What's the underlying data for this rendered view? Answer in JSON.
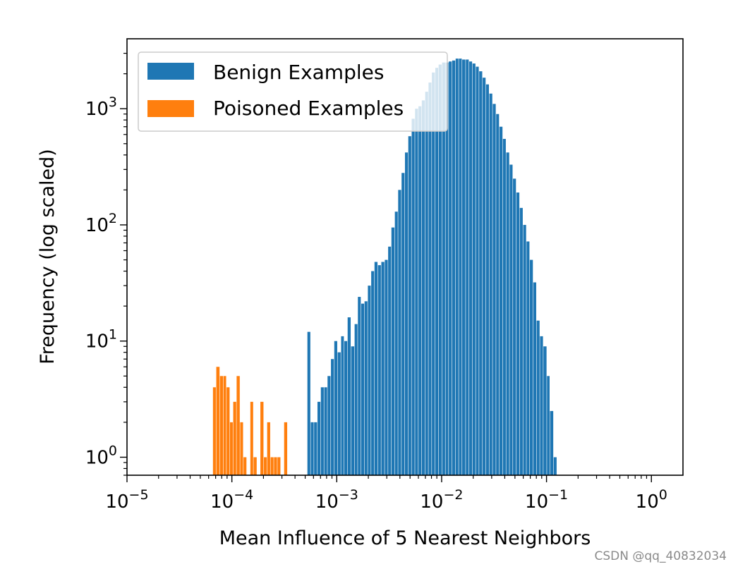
{
  "chart_data": {
    "type": "bar",
    "xscale": "log",
    "yscale": "log",
    "xlim": [
      1e-05,
      2.0
    ],
    "ylim": [
      0.7,
      4000
    ],
    "xlabel": "Mean Influence of 5 Nearest Neighbors",
    "ylabel": "Frequency (log scaled)",
    "legend_placement": "upper-left",
    "grid": false,
    "x_ticks": [
      {
        "value": 1e-05,
        "base": "10",
        "exp": "−5"
      },
      {
        "value": 0.0001,
        "base": "10",
        "exp": "−4"
      },
      {
        "value": 0.001,
        "base": "10",
        "exp": "−3"
      },
      {
        "value": 0.01,
        "base": "10",
        "exp": "−2"
      },
      {
        "value": 0.1,
        "base": "10",
        "exp": "−1"
      },
      {
        "value": 1,
        "base": "10",
        "exp": "0"
      }
    ],
    "y_ticks": [
      {
        "value": 1,
        "base": "10",
        "exp": "0"
      },
      {
        "value": 10,
        "base": "10",
        "exp": "1"
      },
      {
        "value": 100,
        "base": "10",
        "exp": "2"
      },
      {
        "value": 1000,
        "base": "10",
        "exp": "3"
      }
    ],
    "series": [
      {
        "name": "Benign Examples",
        "color": "#1f77b4",
        "bins": [
          [
            0.000525,
            0.000565,
            12
          ],
          [
            0.000565,
            0.000608,
            2
          ],
          [
            0.000608,
            0.000655,
            2
          ],
          [
            0.000655,
            0.000705,
            3
          ],
          [
            0.000705,
            0.000759,
            4
          ],
          [
            0.000759,
            0.000817,
            4
          ],
          [
            0.000817,
            0.00088,
            5
          ],
          [
            0.00088,
            0.000947,
            7
          ],
          [
            0.000947,
            0.00102,
            10
          ],
          [
            0.00102,
            0.0011,
            8
          ],
          [
            0.0011,
            0.00118,
            11
          ],
          [
            0.00118,
            0.00127,
            10
          ],
          [
            0.00127,
            0.00137,
            16
          ],
          [
            0.00137,
            0.00148,
            9
          ],
          [
            0.00148,
            0.00159,
            14
          ],
          [
            0.00159,
            0.00171,
            24
          ],
          [
            0.00171,
            0.00184,
            21
          ],
          [
            0.00184,
            0.00198,
            22
          ],
          [
            0.00198,
            0.00213,
            30
          ],
          [
            0.00213,
            0.00229,
            40
          ],
          [
            0.00229,
            0.00247,
            48
          ],
          [
            0.00247,
            0.00266,
            45
          ],
          [
            0.00266,
            0.00287,
            48
          ],
          [
            0.00287,
            0.00309,
            50
          ],
          [
            0.00309,
            0.00332,
            65
          ],
          [
            0.00332,
            0.00358,
            95
          ],
          [
            0.00358,
            0.00385,
            130
          ],
          [
            0.00385,
            0.00415,
            200
          ],
          [
            0.00415,
            0.00447,
            280
          ],
          [
            0.00447,
            0.00481,
            420
          ],
          [
            0.00481,
            0.00518,
            580
          ],
          [
            0.00518,
            0.00558,
            820
          ],
          [
            0.00558,
            0.00601,
            1000
          ],
          [
            0.00601,
            0.00647,
            1050
          ],
          [
            0.00647,
            0.00697,
            1180
          ],
          [
            0.00697,
            0.0075,
            1400
          ],
          [
            0.0075,
            0.00807,
            1680
          ],
          [
            0.00807,
            0.0087,
            2050
          ],
          [
            0.0087,
            0.00936,
            2250
          ],
          [
            0.00936,
            0.0101,
            2400
          ],
          [
            0.0101,
            0.0109,
            2500
          ],
          [
            0.0109,
            0.0117,
            2500
          ],
          [
            0.0117,
            0.0126,
            2550
          ],
          [
            0.0126,
            0.0136,
            2600
          ],
          [
            0.0136,
            0.0146,
            2700
          ],
          [
            0.0146,
            0.0157,
            2700
          ],
          [
            0.0157,
            0.017,
            2650
          ],
          [
            0.017,
            0.0183,
            2650
          ],
          [
            0.0183,
            0.0197,
            2550
          ],
          [
            0.0197,
            0.0212,
            2450
          ],
          [
            0.0212,
            0.0228,
            2300
          ],
          [
            0.0228,
            0.0246,
            2100
          ],
          [
            0.0246,
            0.0265,
            1850
          ],
          [
            0.0265,
            0.0285,
            1620
          ],
          [
            0.0285,
            0.0307,
            1350
          ],
          [
            0.0307,
            0.0331,
            1100
          ],
          [
            0.0331,
            0.0356,
            900
          ],
          [
            0.0356,
            0.0384,
            700
          ],
          [
            0.0384,
            0.0413,
            550
          ],
          [
            0.0413,
            0.0445,
            420
          ],
          [
            0.0445,
            0.0479,
            330
          ],
          [
            0.0479,
            0.0516,
            250
          ],
          [
            0.0516,
            0.0556,
            190
          ],
          [
            0.0556,
            0.0599,
            140
          ],
          [
            0.0599,
            0.0645,
            100
          ],
          [
            0.0645,
            0.0694,
            72
          ],
          [
            0.0694,
            0.0748,
            50
          ],
          [
            0.0748,
            0.0805,
            32
          ],
          [
            0.0805,
            0.0867,
            15
          ],
          [
            0.0867,
            0.0934,
            11
          ],
          [
            0.0934,
            0.101,
            9
          ],
          [
            0.101,
            0.108,
            5
          ],
          [
            0.108,
            0.117,
            2.5
          ],
          [
            0.117,
            0.126,
            1
          ]
        ]
      },
      {
        "name": "Poisoned Examples",
        "color": "#ff7f0e",
        "bins": [
          [
            6.6e-05,
            7.1e-05,
            4
          ],
          [
            7.1e-05,
            7.7e-05,
            6
          ],
          [
            7.7e-05,
            8.3e-05,
            5
          ],
          [
            8.3e-05,
            8.9e-05,
            5
          ],
          [
            8.9e-05,
            9.6e-05,
            4
          ],
          [
            9.6e-05,
            0.000103,
            2
          ],
          [
            0.000103,
            0.000111,
            3
          ],
          [
            0.000111,
            0.00012,
            5
          ],
          [
            0.00012,
            0.000129,
            2
          ],
          [
            0.000129,
            0.000139,
            1
          ],
          [
            0.000139,
            0.00015,
            0
          ],
          [
            0.00015,
            0.000161,
            3
          ],
          [
            0.000161,
            0.000174,
            1
          ],
          [
            0.000174,
            0.000187,
            0
          ],
          [
            0.000187,
            0.000202,
            3
          ],
          [
            0.000202,
            0.000217,
            1
          ],
          [
            0.000217,
            0.000234,
            2
          ],
          [
            0.000234,
            0.000252,
            1
          ],
          [
            0.000252,
            0.000272,
            1
          ],
          [
            0.000272,
            0.000293,
            1
          ],
          [
            0.000293,
            0.000315,
            0
          ],
          [
            0.000315,
            0.00034,
            2
          ]
        ]
      }
    ]
  },
  "watermark": "CSDN @qq_40832034"
}
